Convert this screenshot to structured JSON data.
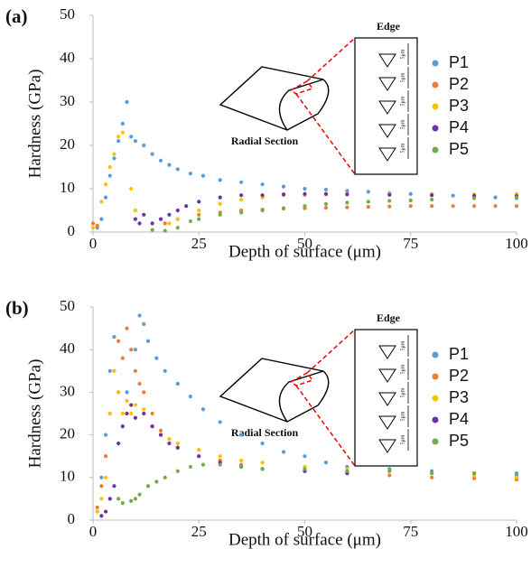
{
  "chart_data": [
    {
      "type": "scatter",
      "panel_label": "(a)",
      "xlabel": "Depth of surface (μm)",
      "ylabel": "Hardness (GPa)",
      "xlim": [
        0,
        100
      ],
      "ylim": [
        0,
        50
      ],
      "xticks": [
        0,
        25,
        50,
        75,
        100
      ],
      "yticks": [
        0,
        10,
        20,
        30,
        40,
        50
      ],
      "legend": "right",
      "annotations": [
        "Edge",
        "Radial Section"
      ],
      "inset_scale": "5μm",
      "series": [
        {
          "name": "P1",
          "color": "#5b9bd5",
          "x": [
            1,
            2,
            3,
            4,
            5,
            6,
            7,
            8,
            9,
            10,
            12,
            14,
            16,
            18,
            20,
            23,
            26,
            30,
            35,
            40,
            45,
            50,
            55,
            60,
            65,
            70,
            75,
            80,
            85,
            90,
            95,
            100
          ],
          "y": [
            1,
            3,
            8,
            13,
            17,
            21,
            25,
            30,
            22,
            21,
            20,
            18,
            16.5,
            15.5,
            14.5,
            13.5,
            13,
            12,
            11.5,
            11,
            10.5,
            10,
            9.8,
            9.5,
            9.3,
            9,
            8.8,
            8.6,
            8.4,
            8.2,
            8,
            7.8
          ]
        },
        {
          "name": "P2",
          "color": "#ed7d31",
          "x": [
            0,
            1,
            17,
            20,
            25,
            30,
            35,
            40,
            45,
            50,
            55,
            60,
            65,
            70,
            75,
            80,
            85,
            90,
            95,
            100
          ],
          "y": [
            2,
            1.5,
            2,
            3,
            4,
            4.5,
            5,
            5.2,
            5.4,
            5.5,
            5.6,
            5.7,
            5.8,
            5.9,
            6,
            6,
            6,
            6,
            6,
            6
          ]
        },
        {
          "name": "P3",
          "color": "#ffc000",
          "x": [
            0,
            2,
            3,
            4,
            5,
            6,
            7,
            9,
            10,
            18,
            20,
            25,
            30,
            35,
            40,
            45,
            50,
            55,
            60,
            70,
            80,
            90,
            100
          ],
          "y": [
            1,
            7,
            11,
            15,
            18,
            22,
            23,
            10,
            5,
            2,
            3,
            5,
            6.5,
            7.5,
            8,
            8.5,
            8.5,
            8.7,
            8.8,
            8.8,
            8.8,
            8.7,
            8.8
          ]
        },
        {
          "name": "P4",
          "color": "#7030a0",
          "x": [
            10,
            11,
            12,
            14,
            16,
            18,
            20,
            22,
            25,
            30,
            35,
            40,
            45,
            50,
            55,
            60,
            70,
            80,
            90,
            100
          ],
          "y": [
            3,
            2,
            4,
            2,
            3,
            4,
            5,
            6,
            7,
            8,
            8.5,
            8.5,
            8.7,
            8.8,
            8.8,
            8.7,
            8.6,
            8.5,
            8.4,
            8.3
          ]
        },
        {
          "name": "P5",
          "color": "#70ad47",
          "x": [
            14,
            17,
            20,
            23,
            25,
            30,
            35,
            40,
            45,
            50,
            55,
            60,
            65,
            70,
            75,
            80,
            90,
            100
          ],
          "y": [
            0.5,
            0.3,
            1,
            2.5,
            3,
            4,
            4.5,
            5,
            5.5,
            6,
            6.5,
            6.8,
            7,
            7.2,
            7.3,
            7.5,
            7.8,
            8
          ]
        }
      ]
    },
    {
      "type": "scatter",
      "panel_label": "(b)",
      "xlabel": "Depth of surface (μm)",
      "ylabel": "Hardness (GPa)",
      "xlim": [
        0,
        100
      ],
      "ylim": [
        0,
        50
      ],
      "xticks": [
        0,
        25,
        50,
        75,
        100
      ],
      "yticks": [
        0,
        10,
        20,
        30,
        40,
        50
      ],
      "legend": "right",
      "annotations": [
        "Edge",
        "Radial Section"
      ],
      "inset_scale": "5μm",
      "series": [
        {
          "name": "P1",
          "color": "#5b9bd5",
          "x": [
            1,
            2,
            3,
            4,
            5,
            6,
            8,
            10,
            11,
            12,
            13,
            15,
            17,
            20,
            23,
            26,
            30,
            35,
            40,
            45,
            50,
            55,
            60,
            70,
            80,
            90,
            100
          ],
          "y": [
            2,
            10,
            20,
            35,
            43,
            30,
            30,
            40,
            48,
            46,
            42,
            38,
            35,
            32,
            29,
            26,
            23,
            20,
            18,
            16,
            15,
            13.5,
            12.5,
            12,
            11.5,
            11,
            10.5
          ]
        },
        {
          "name": "P2",
          "color": "#ed7d31",
          "x": [
            1,
            2,
            3,
            4,
            5,
            6,
            7,
            8,
            9,
            10,
            11,
            12,
            14,
            16,
            18,
            20,
            25,
            30,
            35,
            40,
            50,
            60,
            70,
            80,
            90,
            100
          ],
          "y": [
            3,
            8,
            15,
            25,
            35,
            42,
            38,
            45,
            40,
            35,
            32,
            30,
            25,
            21,
            19,
            17,
            15,
            14,
            13,
            12,
            11.5,
            11,
            10.5,
            10,
            9.8,
            9.5
          ]
        },
        {
          "name": "P3",
          "color": "#ffc000",
          "x": [
            1,
            2,
            3,
            4,
            5,
            6,
            7,
            8,
            9,
            10,
            12,
            14,
            16,
            18,
            20,
            25,
            30,
            35,
            40,
            50,
            60,
            70,
            80,
            90,
            100
          ],
          "y": [
            2,
            5,
            10,
            25,
            35,
            30,
            25,
            28,
            25,
            27,
            26,
            22,
            20,
            19,
            18,
            16.5,
            15,
            14,
            13.5,
            12.5,
            12,
            11.5,
            11,
            10.5,
            10
          ]
        },
        {
          "name": "P4",
          "color": "#7030a0",
          "x": [
            2,
            3,
            4,
            5,
            6,
            7,
            8,
            9,
            10,
            12,
            14,
            16,
            18,
            20,
            25,
            30,
            35,
            40,
            50,
            60
          ],
          "y": [
            1,
            2,
            5,
            8,
            18,
            22,
            25,
            27,
            24,
            25,
            22,
            20,
            18,
            17,
            15,
            13.5,
            12.5,
            12,
            11.5,
            11
          ]
        },
        {
          "name": "P5",
          "color": "#70ad47",
          "x": [
            6,
            7,
            9,
            10,
            11,
            13,
            15,
            17,
            20,
            23,
            26,
            30,
            35,
            40,
            50,
            60,
            70,
            80,
            90,
            100
          ],
          "y": [
            5,
            4,
            4.5,
            5,
            6,
            8,
            9,
            10,
            11.5,
            12.5,
            13,
            13,
            12.5,
            12,
            12,
            11.5,
            11.5,
            11,
            11,
            11
          ]
        }
      ]
    }
  ]
}
